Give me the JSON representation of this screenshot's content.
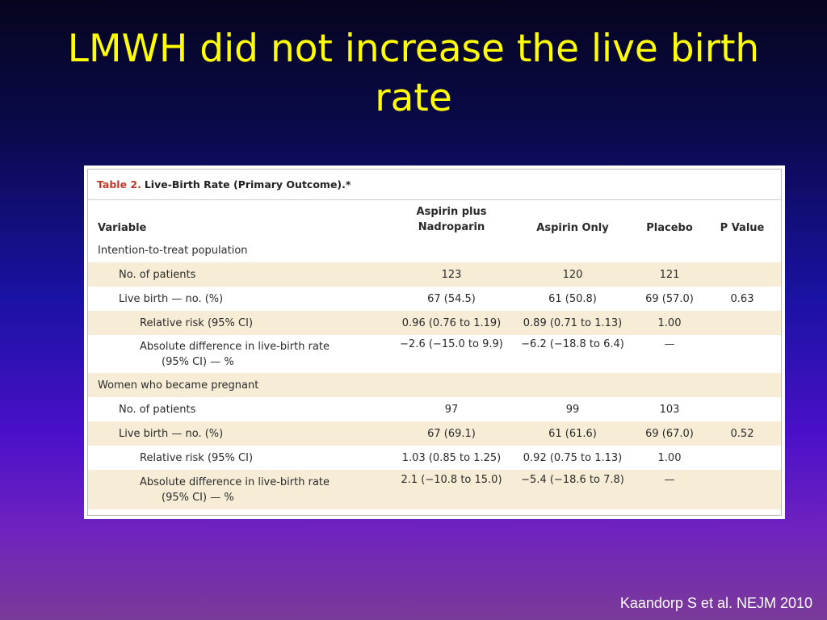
{
  "slide": {
    "title": "LMWH did not increase the live birth rate",
    "citation": "Kaandorp S et al. NEJM 2010"
  },
  "table": {
    "caption_label": "Table 2.",
    "caption_text": "Live-Birth Rate (Primary Outcome).*",
    "headers": {
      "variable": "Variable",
      "col_a_line1": "Aspirin plus",
      "col_a_line2": "Nadroparin",
      "col_b": "Aspirin Only",
      "col_c": "Placebo",
      "col_d": "P Value"
    },
    "sections": [
      {
        "title": "Intention-to-treat population",
        "rows": {
          "patients": {
            "label": "No. of patients",
            "a": "123",
            "b": "120",
            "c": "121",
            "d": ""
          },
          "live_birth": {
            "label": "Live birth — no. (%)",
            "a": "67 (54.5)",
            "b": "61 (50.8)",
            "c": "69 (57.0)",
            "d": "0.63"
          },
          "relative_risk": {
            "label": "Relative risk (95% CI)",
            "a": "0.96 (0.76 to 1.19)",
            "b": "0.89 (0.71 to 1.13)",
            "c": "1.00",
            "d": ""
          },
          "abs_diff": {
            "label1": "Absolute difference in live-birth rate",
            "label2": "(95% CI) — %",
            "a": "−2.6 (−15.0 to 9.9)",
            "b": "−6.2 (−18.8 to 6.4)",
            "c": "—",
            "d": ""
          }
        }
      },
      {
        "title": "Women who became pregnant",
        "rows": {
          "patients": {
            "label": "No. of patients",
            "a": "97",
            "b": "99",
            "c": "103",
            "d": ""
          },
          "live_birth": {
            "label": "Live birth — no. (%)",
            "a": "67 (69.1)",
            "b": "61 (61.6)",
            "c": "69 (67.0)",
            "d": "0.52"
          },
          "relative_risk": {
            "label": "Relative risk (95% CI)",
            "a": "1.03 (0.85 to 1.25)",
            "b": "0.92 (0.75 to 1.13)",
            "c": "1.00",
            "d": ""
          },
          "abs_diff": {
            "label1": "Absolute difference in live-birth rate",
            "label2": "(95% CI) — %",
            "a": "2.1 (−10.8 to 15.0)",
            "b": "−5.4 (−18.6 to 7.8)",
            "c": "—",
            "d": ""
          }
        }
      }
    ]
  }
}
